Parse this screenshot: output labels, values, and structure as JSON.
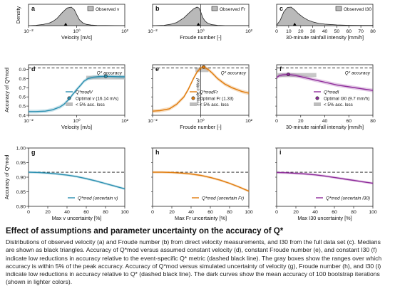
{
  "caption": {
    "title": "Effect of assumptions and parameter uncertainty on the accuracy of Q*",
    "body": "Distributions of observed velocity (a) and Froude number (b) from direct velocity measurements, and I30 from the full data set (c). Medians are shown as black triangles. Accuracy of Q*mod versus assumed constant velocity (d), constant Froude number (e), and constant I30 (f) indicate low reductions in accuracy relative to the event-specific Q* metric (dashed black line). The gray boxes show the ranges over which accuracy is within 5% of the peak accuracy. Accuracy of Q*mod versus simulated uncertainty of velocity (g), Froude number (h), and I30 (i) indicate low reductions in accuracy relative to Q* (dashed black line). The dark curves show the mean accuracy of 100 bootstrap iterations (shown in lighter colors)."
  },
  "colors": {
    "velocity": "#2a8fb0",
    "froude": "#e07b0c",
    "rainfall": "#8e2b9a",
    "density_fill": "#b9b9b9",
    "accbox": "#bdbdbd"
  },
  "chart_data": [
    {
      "id": "a",
      "type": "area",
      "panel_label": "a",
      "ylabel": "Density",
      "xlabel": "Velocity [m/s]",
      "x_scale": "log",
      "xlim": [
        0.01,
        100
      ],
      "x_ticks": [
        0.01,
        1,
        100
      ],
      "x_tick_labels": [
        "10⁻²",
        "10⁰",
        "10²"
      ],
      "legend": "Observed v",
      "median": 0.35,
      "x": [
        0.01,
        0.02,
        0.04,
        0.07,
        0.1,
        0.15,
        0.25,
        0.4,
        0.6,
        0.8,
        1.0,
        1.3,
        1.8,
        2.5,
        4,
        7,
        100
      ],
      "y": [
        0,
        0.02,
        0.06,
        0.13,
        0.22,
        0.38,
        0.7,
        0.95,
        1.0,
        0.86,
        0.6,
        0.32,
        0.15,
        0.07,
        0.03,
        0.01,
        0
      ]
    },
    {
      "id": "b",
      "type": "area",
      "panel_label": "b",
      "xlabel": "Froude number [-]",
      "x_scale": "log",
      "xlim": [
        0.01,
        100
      ],
      "x_ticks": [
        0.01,
        1,
        100
      ],
      "x_tick_labels": [
        "10⁻²",
        "10⁰",
        "10²"
      ],
      "legend": "Observed Fr",
      "median": 0.8,
      "vline": 1,
      "x": [
        0.01,
        0.03,
        0.06,
        0.1,
        0.2,
        0.35,
        0.5,
        0.7,
        0.85,
        1.0,
        1.2,
        1.5,
        2,
        3,
        5,
        10,
        100
      ],
      "y": [
        0,
        0.02,
        0.08,
        0.17,
        0.42,
        0.72,
        0.9,
        1.0,
        0.95,
        0.75,
        0.45,
        0.25,
        0.12,
        0.05,
        0.02,
        0.005,
        0
      ]
    },
    {
      "id": "c",
      "type": "area",
      "panel_label": "c",
      "xlabel": "30-minute rainfall intensity [mm/h]",
      "xlim": [
        0,
        80
      ],
      "x_ticks": [
        0,
        10,
        20,
        30,
        40,
        50,
        60,
        70,
        80
      ],
      "legend": "Observed I30",
      "median": 15,
      "x": [
        0,
        3,
        6,
        9,
        12,
        15,
        18,
        22,
        26,
        30,
        35,
        40,
        50,
        60,
        70,
        80
      ],
      "y": [
        0.02,
        0.3,
        0.75,
        0.98,
        1.0,
        0.85,
        0.65,
        0.45,
        0.3,
        0.2,
        0.12,
        0.08,
        0.04,
        0.02,
        0.01,
        0.01
      ]
    },
    {
      "id": "d",
      "type": "line",
      "panel_label": "d",
      "ylabel": "Accuracy of Q*mod",
      "xlabel": "Velocity [m/s]",
      "x_scale": "log",
      "xlim": [
        0.01,
        100
      ],
      "ylim": [
        0.4,
        0.95
      ],
      "x_ticks": [
        0.01,
        1,
        100
      ],
      "x_tick_labels": [
        "10⁻²",
        "10⁰",
        "10²"
      ],
      "y_ticks": [
        0.4,
        0.5,
        0.6,
        0.7,
        0.8,
        0.9
      ],
      "reference_label": "Q* accuracy",
      "reference": 0.915,
      "acc_box": {
        "x": [
          2.5,
          100
        ],
        "y": [
          0.79,
          0.83
        ]
      },
      "optimal": {
        "x": 16.14,
        "y": 0.825,
        "label": "Optimal v (16.14 m/s)"
      },
      "series": [
        {
          "name": "Q*modV",
          "x": [
            0.01,
            0.02,
            0.05,
            0.1,
            0.2,
            0.3,
            0.5,
            0.7,
            1,
            1.5,
            2,
            3,
            5,
            10,
            20,
            50,
            100
          ],
          "y": [
            0.44,
            0.44,
            0.445,
            0.46,
            0.49,
            0.52,
            0.58,
            0.63,
            0.68,
            0.73,
            0.77,
            0.8,
            0.815,
            0.822,
            0.824,
            0.82,
            0.818
          ]
        }
      ],
      "legend_box": "< 5% acc. loss"
    },
    {
      "id": "e",
      "type": "line",
      "panel_label": "e",
      "xlabel": "Froude number [-]",
      "x_scale": "log",
      "xlim": [
        0.01,
        100
      ],
      "ylim": [
        0.4,
        0.95
      ],
      "x_ticks": [
        0.01,
        1,
        100
      ],
      "x_tick_labels": [
        "10⁻²",
        "10⁰",
        "10²"
      ],
      "reference_label": "Q* accuracy",
      "reference": 0.915,
      "acc_box": {
        "x": [
          0.6,
          2.1
        ],
        "y": [
          0.87,
          0.92
        ]
      },
      "vline": 1,
      "vline_label": "Froude critical",
      "optimal": {
        "x": 1.33,
        "y": 0.925,
        "label": "Optimal Fr (1.33)"
      },
      "series": [
        {
          "name": "Q*modFr",
          "x": [
            0.01,
            0.02,
            0.05,
            0.1,
            0.2,
            0.3,
            0.5,
            0.7,
            1,
            1.33,
            2,
            3,
            5,
            10,
            20,
            50,
            100
          ],
          "y": [
            0.445,
            0.45,
            0.47,
            0.52,
            0.6,
            0.68,
            0.8,
            0.87,
            0.915,
            0.925,
            0.9,
            0.86,
            0.8,
            0.74,
            0.7,
            0.66,
            0.64
          ]
        }
      ],
      "legend_box": "< 5% acc. loss"
    },
    {
      "id": "f",
      "type": "line",
      "panel_label": "f",
      "xlabel": "30-minute rainfall intensity [mm/h]",
      "xlim": [
        0,
        80
      ],
      "ylim": [
        0.4,
        0.95
      ],
      "x_ticks": [
        0,
        20,
        40,
        60,
        80
      ],
      "reference_label": "Q* accuracy",
      "reference": 0.915,
      "acc_box": {
        "x": [
          0,
          33
        ],
        "y": [
          0.815,
          0.86
        ]
      },
      "optimal": {
        "x": 9.7,
        "y": 0.845,
        "label": "Optimal I30 (9.7 mm/h)"
      },
      "series": [
        {
          "name": "Q*modI",
          "x": [
            0,
            2,
            5,
            9.7,
            15,
            20,
            30,
            40,
            50,
            60,
            70,
            80
          ],
          "y": [
            0.81,
            0.83,
            0.84,
            0.845,
            0.835,
            0.82,
            0.79,
            0.76,
            0.73,
            0.71,
            0.69,
            0.67
          ]
        }
      ],
      "legend_box": "< 5% acc. loss"
    },
    {
      "id": "g",
      "type": "line",
      "panel_label": "g",
      "ylabel": "Accuracy of Q*mod",
      "xlabel": "Max v uncertainty [%]",
      "xlim": [
        0,
        100
      ],
      "ylim": [
        0.8,
        1.0
      ],
      "x_ticks": [
        0,
        20,
        40,
        60,
        80,
        100
      ],
      "y_ticks": [
        0.8,
        0.85,
        0.9,
        0.95,
        1.0
      ],
      "reference": 0.917,
      "series": [
        {
          "name": "Q*mod (uncertain v)",
          "x": [
            0,
            10,
            20,
            30,
            40,
            50,
            60,
            70,
            80,
            90,
            100
          ],
          "y": [
            0.917,
            0.916,
            0.914,
            0.911,
            0.907,
            0.902,
            0.895,
            0.887,
            0.878,
            0.869,
            0.86
          ]
        }
      ]
    },
    {
      "id": "h",
      "type": "line",
      "panel_label": "h",
      "xlabel": "Max Fr uncertainty [%]",
      "xlim": [
        0,
        100
      ],
      "ylim": [
        0.8,
        1.0
      ],
      "x_ticks": [
        0,
        20,
        40,
        60,
        80,
        100
      ],
      "reference": 0.917,
      "series": [
        {
          "name": "Q*mod (uncertain Fr)",
          "x": [
            0,
            10,
            20,
            30,
            40,
            50,
            60,
            70,
            80,
            90,
            100
          ],
          "y": [
            0.917,
            0.917,
            0.916,
            0.914,
            0.911,
            0.906,
            0.899,
            0.89,
            0.879,
            0.866,
            0.852
          ]
        }
      ]
    },
    {
      "id": "i",
      "type": "line",
      "panel_label": "i",
      "xlabel": "Max I30 uncertainty [%]",
      "xlim": [
        0,
        100
      ],
      "ylim": [
        0.8,
        1.0
      ],
      "x_ticks": [
        0,
        20,
        40,
        60,
        80,
        100
      ],
      "reference": 0.917,
      "series": [
        {
          "name": "Q*mod (uncertain I30)",
          "x": [
            0,
            10,
            20,
            30,
            40,
            50,
            60,
            70,
            80,
            90,
            100
          ],
          "y": [
            0.916,
            0.915,
            0.913,
            0.911,
            0.908,
            0.904,
            0.899,
            0.894,
            0.889,
            0.884,
            0.879
          ]
        }
      ]
    }
  ]
}
